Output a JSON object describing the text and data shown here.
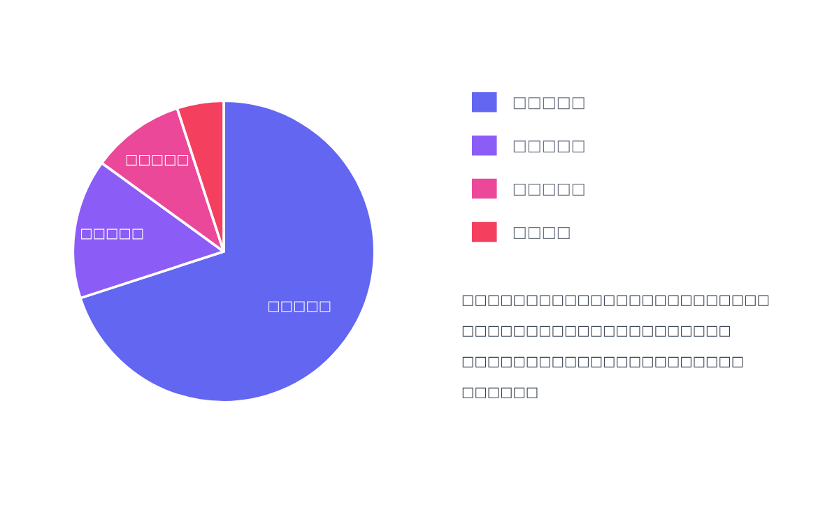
{
  "chart_data": {
    "type": "pie",
    "categories": [
      "□□□□□",
      "□□□□□",
      "□□□□□",
      "□□□□"
    ],
    "values": [
      70,
      15,
      10,
      5
    ],
    "colors": [
      "#6366f1",
      "#8b5cf6",
      "#ec4899",
      "#f43f5e"
    ],
    "legend": "right",
    "annotations": [
      "□□□□□□□□□□□□□□□□□□□□□□□□",
      "□□□□□□□□□□□□□□□□□□□□□",
      "□□□□□□□□□□□□□□□□□□□□□□",
      "□□□□□□"
    ]
  }
}
